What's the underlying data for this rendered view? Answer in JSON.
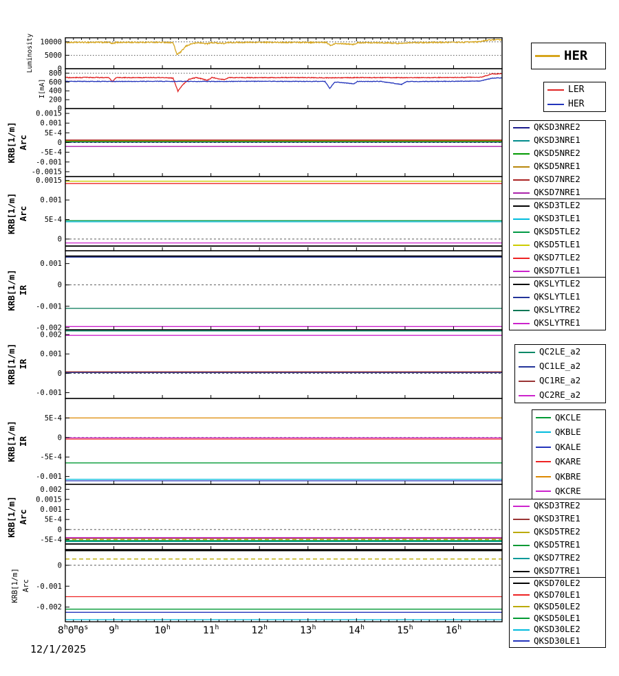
{
  "page": {
    "background": "#ffffff",
    "frame_color": "#000000"
  },
  "x_axis": {
    "min": 8,
    "max": 17,
    "date": "12/1/2025",
    "ticks": [
      {
        "v": 8,
        "label": "8h0m0s"
      },
      {
        "v": 9,
        "label": "9h"
      },
      {
        "v": 10,
        "label": "10h"
      },
      {
        "v": 11,
        "label": "11h"
      },
      {
        "v": 12,
        "label": "12h"
      },
      {
        "v": 13,
        "label": "13h"
      },
      {
        "v": 14,
        "label": "14h"
      },
      {
        "v": 15,
        "label": "15h"
      },
      {
        "v": 16,
        "label": "16h"
      }
    ]
  },
  "chart_data": [
    {
      "name": "luminosity",
      "type": "line",
      "ylabel": [
        "Luminosity"
      ],
      "ylim": [
        0,
        11500
      ],
      "yticks": [
        {
          "v": 10000,
          "label": "10000"
        },
        {
          "v": 5000,
          "label": "5000"
        },
        {
          "v": 0,
          "label": "0"
        }
      ],
      "grid": [
        10000,
        5000
      ],
      "series": [
        {
          "name": "HER",
          "color": "#d6a51c",
          "noise": 220,
          "points": [
            [
              8,
              9750
            ],
            [
              8.3,
              9800
            ],
            [
              8.6,
              9820
            ],
            [
              8.9,
              9790
            ],
            [
              8.97,
              9280
            ],
            [
              9.05,
              9780
            ],
            [
              9.4,
              9800
            ],
            [
              9.8,
              9820
            ],
            [
              10.1,
              9800
            ],
            [
              10.22,
              9650
            ],
            [
              10.3,
              5300
            ],
            [
              10.38,
              6200
            ],
            [
              10.48,
              8300
            ],
            [
              10.6,
              9300
            ],
            [
              10.75,
              9650
            ],
            [
              10.93,
              9280
            ],
            [
              11.02,
              9700
            ],
            [
              11.28,
              9380
            ],
            [
              11.36,
              9720
            ],
            [
              11.7,
              9780
            ],
            [
              12,
              9800
            ],
            [
              12.4,
              9780
            ],
            [
              12.8,
              9800
            ],
            [
              13.1,
              9780
            ],
            [
              13.38,
              9720
            ],
            [
              13.47,
              8650
            ],
            [
              13.57,
              9500
            ],
            [
              13.95,
              9050
            ],
            [
              14.03,
              9680
            ],
            [
              14.4,
              9720
            ],
            [
              14.93,
              9380
            ],
            [
              15.02,
              9700
            ],
            [
              15.4,
              9750
            ],
            [
              15.8,
              9800
            ],
            [
              16.2,
              9850
            ],
            [
              16.5,
              9950
            ],
            [
              16.65,
              10500
            ],
            [
              16.8,
              10750
            ],
            [
              17,
              10700
            ]
          ]
        }
      ]
    },
    {
      "name": "current",
      "type": "line",
      "ylabel": [
        "I[mA]"
      ],
      "ylim": [
        0,
        900
      ],
      "yticks": [
        {
          "v": 800,
          "label": "800"
        },
        {
          "v": 600,
          "label": "600"
        },
        {
          "v": 400,
          "label": "400"
        },
        {
          "v": 200,
          "label": "200"
        },
        {
          "v": 0,
          "label": "0"
        }
      ],
      "grid": [
        800
      ],
      "series": [
        {
          "name": "LER",
          "color": "#e02222",
          "noise": 8,
          "points": [
            [
              8,
              700
            ],
            [
              8.55,
              702
            ],
            [
              8.9,
              700
            ],
            [
              8.97,
              608
            ],
            [
              9.05,
              700
            ],
            [
              9.5,
              700
            ],
            [
              10,
              702
            ],
            [
              10.22,
              688
            ],
            [
              10.32,
              392
            ],
            [
              10.42,
              540
            ],
            [
              10.55,
              662
            ],
            [
              10.7,
              700
            ],
            [
              10.93,
              640
            ],
            [
              11.02,
              700
            ],
            [
              11.28,
              652
            ],
            [
              11.36,
              700
            ],
            [
              11.9,
              698
            ],
            [
              12.5,
              700
            ],
            [
              13,
              700
            ],
            [
              13.45,
              694
            ],
            [
              14,
              700
            ],
            [
              14.5,
              700
            ],
            [
              15,
              698
            ],
            [
              15.5,
              700
            ],
            [
              16,
              702
            ],
            [
              16.55,
              706
            ],
            [
              16.8,
              782
            ],
            [
              17,
              785
            ]
          ]
        },
        {
          "name": "HER",
          "color": "#2233bb",
          "noise": 6,
          "points": [
            [
              8,
              615
            ],
            [
              8.5,
              613
            ],
            [
              9,
              612
            ],
            [
              9.5,
              614
            ],
            [
              10,
              615
            ],
            [
              10.5,
              613
            ],
            [
              11,
              612
            ],
            [
              11.5,
              614
            ],
            [
              12,
              615
            ],
            [
              12.5,
              614
            ],
            [
              13,
              613
            ],
            [
              13.35,
              612
            ],
            [
              13.45,
              455
            ],
            [
              13.55,
              600
            ],
            [
              13.95,
              560
            ],
            [
              14.02,
              612
            ],
            [
              14.5,
              613
            ],
            [
              14.93,
              545
            ],
            [
              15.03,
              610
            ],
            [
              15.5,
              612
            ],
            [
              16,
              615
            ],
            [
              16.55,
              620
            ],
            [
              16.8,
              688
            ],
            [
              17,
              692
            ]
          ]
        }
      ]
    },
    {
      "name": "arc-nre",
      "type": "line",
      "ylabel": [
        "KRB[1/m]",
        "Arc"
      ],
      "ylim": [
        -0.00175,
        0.00175
      ],
      "yticks": [
        {
          "v": 0.0015,
          "label": "0.0015"
        },
        {
          "v": 0.001,
          "label": "0.001"
        },
        {
          "v": 0.0005,
          "label": "5E-4"
        },
        {
          "v": 0,
          "label": "0"
        },
        {
          "v": -0.0005,
          "label": "-5E-4"
        },
        {
          "v": -0.001,
          "label": "-0.001"
        },
        {
          "v": -0.0015,
          "label": "-0.0015"
        }
      ],
      "grid": [
        0
      ],
      "series": [
        {
          "name": "QKSD3NRE2",
          "color": "#1a1a8c",
          "value": 2e-05
        },
        {
          "name": "QKSD3NRE1",
          "color": "#008b8b",
          "value": 4e-05
        },
        {
          "name": "QKSD5NRE2",
          "color": "#009900",
          "value": 6e-05
        },
        {
          "name": "QKSD5NRE1",
          "color": "#b8860b",
          "value": 9e-05
        },
        {
          "name": "QKSD7NRE2",
          "color": "#aa2222",
          "value": 0.00013
        },
        {
          "name": "QKSD7NRE1",
          "color": "#aa22aa",
          "value": -0.0002
        }
      ]
    },
    {
      "name": "arc-tle",
      "type": "line",
      "ylabel": [
        "KRB[1/m]",
        "Arc"
      ],
      "ylim": [
        -0.0003,
        0.0016
      ],
      "yticks": [
        {
          "v": 0.0015,
          "label": "0.0015"
        },
        {
          "v": 0.001,
          "label": "0.001"
        },
        {
          "v": 0.0005,
          "label": "5E-4"
        },
        {
          "v": 0,
          "label": "0"
        }
      ],
      "grid": [
        0
      ],
      "series": [
        {
          "name": "QKSD3TLE2",
          "color": "#000000",
          "value": -0.00018
        },
        {
          "name": "QKSD3TLE1",
          "color": "#00bbdd",
          "value": 0.00044
        },
        {
          "name": "QKSD5TLE2",
          "color": "#009944",
          "value": 0.00047
        },
        {
          "name": "QKSD5TLE1",
          "color": "#cccc00",
          "value": 0.00148
        },
        {
          "name": "QKSD7TLE2",
          "color": "#ee2222",
          "value": 0.00142
        },
        {
          "name": "QKSD7TLE1",
          "color": "#cc22cc",
          "value": -0.0001
        }
      ]
    },
    {
      "name": "ir-sly",
      "type": "line",
      "ylabel": [
        "KRB[1/m]",
        "IR"
      ],
      "ylim": [
        -0.0021,
        0.0016
      ],
      "yticks": [
        {
          "v": 0.001,
          "label": "0.001"
        },
        {
          "v": 0,
          "label": "0"
        },
        {
          "v": -0.001,
          "label": "-0.001"
        },
        {
          "v": -0.002,
          "label": "-0.002"
        }
      ],
      "grid": [
        0
      ],
      "series": [
        {
          "name": "QKSLYTLE2",
          "color": "#000000",
          "value": 0.00135
        },
        {
          "name": "QKSLYTLE1",
          "color": "#223399",
          "value": 0.0013
        },
        {
          "name": "QKSLYTRE2",
          "color": "#007755",
          "value": -0.0011
        },
        {
          "name": "QKSLYTRE1",
          "color": "#cc22cc",
          "value": -0.00195
        }
      ]
    },
    {
      "name": "ir-qc",
      "type": "line",
      "ylabel": [
        "KRB[1/m]",
        "IR"
      ],
      "ylim": [
        -0.0013,
        0.00225
      ],
      "yticks": [
        {
          "v": 0.002,
          "label": "0.002"
        },
        {
          "v": 0.001,
          "label": "0.001"
        },
        {
          "v": 0,
          "label": "0"
        },
        {
          "v": -0.001,
          "label": "-0.001"
        }
      ],
      "grid": [
        0
      ],
      "series": [
        {
          "name": "QC2LE_a2",
          "color": "#008866",
          "value": 0.00219
        },
        {
          "name": "QC1LE_a2",
          "color": "#223399",
          "value": 4e-05
        },
        {
          "name": "QC1RE_a2",
          "color": "#993333",
          "value": 8e-05
        },
        {
          "name": "QC2RE_a2",
          "color": "#cc22cc",
          "value": 0.00196
        }
      ]
    },
    {
      "name": "ir-qk",
      "type": "line",
      "ylabel": [
        "KRB[1/m]",
        "IR"
      ],
      "ylim": [
        -0.0012,
        0.001
      ],
      "yticks": [
        {
          "v": 0.0005,
          "label": "5E-4"
        },
        {
          "v": 0,
          "label": "0"
        },
        {
          "v": -0.0005,
          "label": "-5E-4"
        },
        {
          "v": -0.001,
          "label": "-0.001"
        }
      ],
      "grid": [
        0
      ],
      "series": [
        {
          "name": "QKCLE",
          "color": "#009933",
          "value": -0.00065
        },
        {
          "name": "QKBLE",
          "color": "#00bbdd",
          "value": -0.00107
        },
        {
          "name": "QKALE",
          "color": "#2233bb",
          "value": -0.00111
        },
        {
          "name": "QKARE",
          "color": "#ee2222",
          "value": -4e-05
        },
        {
          "name": "QKBRE",
          "color": "#dd8800",
          "value": 0.0005
        },
        {
          "name": "QKCRE",
          "color": "#cc22cc",
          "value": -1e-05
        }
      ]
    },
    {
      "name": "arc-tre",
      "type": "line",
      "ylabel": [
        "KRB[1/m]",
        "Arc"
      ],
      "ylim": [
        -0.001,
        0.00225
      ],
      "yticks": [
        {
          "v": 0.002,
          "label": "0.002"
        },
        {
          "v": 0.0015,
          "label": "0.0015"
        },
        {
          "v": 0.001,
          "label": "0.001"
        },
        {
          "v": 0.0005,
          "label": "5E-4"
        },
        {
          "v": 0,
          "label": "0"
        },
        {
          "v": -0.0005,
          "label": "-5E-4"
        }
      ],
      "grid": [
        0
      ],
      "series": [
        {
          "name": "QKSD3TRE2",
          "color": "#cc22cc",
          "value": -0.0004
        },
        {
          "name": "QKSD3TRE1",
          "color": "#993333",
          "value": -0.00044
        },
        {
          "name": "QKSD5TRE2",
          "color": "#bbaa00",
          "value": -0.0005,
          "dash": true
        },
        {
          "name": "QKSD5TRE1",
          "color": "#009933",
          "value": -0.00055
        },
        {
          "name": "QKSD7TRE2",
          "color": "#009999",
          "value": -0.0006
        },
        {
          "name": "QKSD7TRE1",
          "color": "#000000",
          "value": -0.00072
        }
      ]
    },
    {
      "name": "arc-ole",
      "type": "line",
      "ylabel": [
        "KRB[1/m]",
        "Arc"
      ],
      "ylim": [
        -0.0027,
        0.00075
      ],
      "yticks": [
        {
          "v": 0,
          "label": "0"
        },
        {
          "v": -0.001,
          "label": "-0.001"
        },
        {
          "v": -0.002,
          "label": "-0.002"
        }
      ],
      "grid": [
        0
      ],
      "series": [
        {
          "name": "QKSD70LE2",
          "color": "#000000",
          "value": 0.0007
        },
        {
          "name": "QKSD70LE1",
          "color": "#ee2222",
          "value": -0.0015
        },
        {
          "name": "QKSD50LE2",
          "color": "#bbaa00",
          "value": 0.0003,
          "dash": true
        },
        {
          "name": "QKSD50LE1",
          "color": "#009933",
          "value": -0.0021
        },
        {
          "name": "QKSD30LE2",
          "color": "#00bbdd",
          "value": -0.0026
        },
        {
          "name": "QKSD30LE1",
          "color": "#2233bb",
          "value": -0.00225
        }
      ]
    }
  ]
}
